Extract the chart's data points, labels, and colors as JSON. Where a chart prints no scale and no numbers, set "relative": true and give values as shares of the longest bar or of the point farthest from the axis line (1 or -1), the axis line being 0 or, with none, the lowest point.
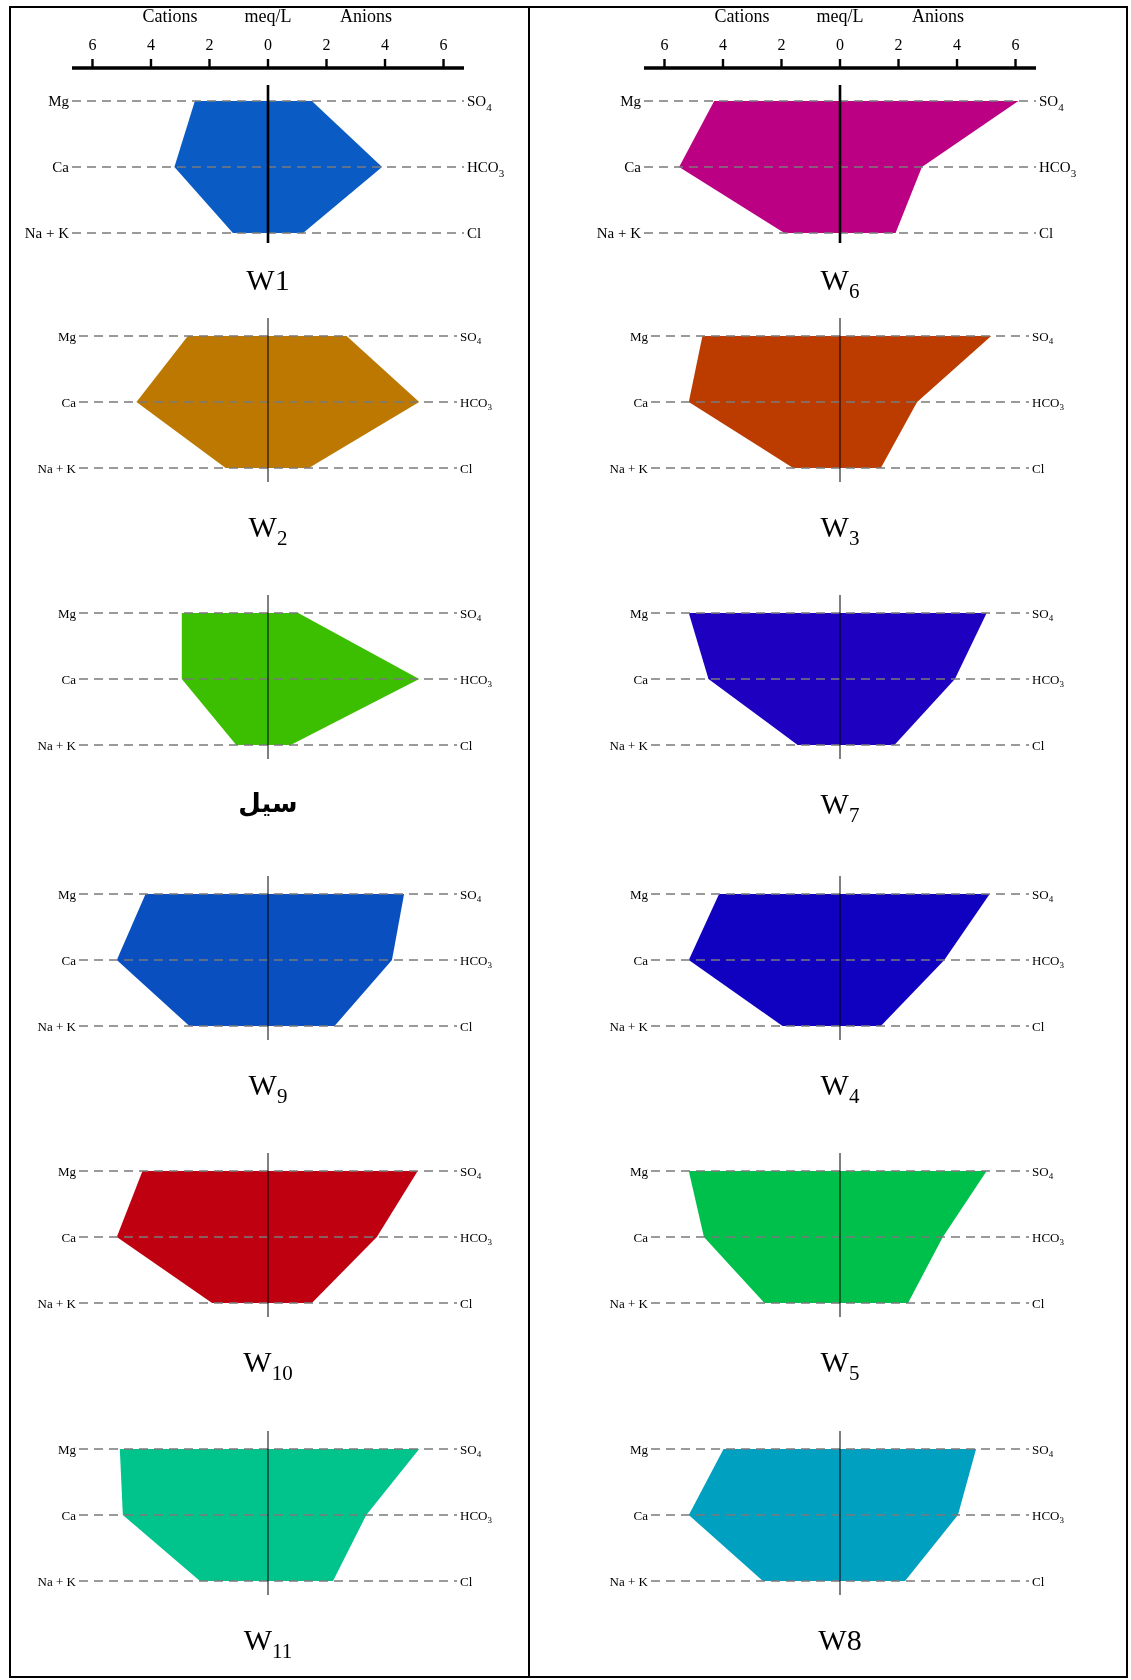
{
  "chart_data": [
    {
      "type": "area",
      "orientation": "horizontal",
      "title": "W1",
      "xlabel": "meq/L",
      "categories": [
        "Mg",
        "Ca",
        "Na + K"
      ],
      "annotations": [
        "SO$_{4}$",
        "HCO$_{3}$",
        "Cl",
        "Cations",
        "Anions"
      ],
      "grid": "y",
      "xlim": [
        -6.7,
        6.7
      ],
      "xticks": [
        {
          "value": -6,
          "label": "6"
        },
        {
          "value": -4,
          "label": "4"
        },
        {
          "value": -2,
          "label": "2"
        },
        0,
        2,
        4,
        6
      ],
      "series": [
        {
          "color": "#0a5cc4",
          "values": [
            -2.5,
            -3.2,
            -1.2
          ]
        },
        {
          "color": "#0a5cc4",
          "values": [
            1.5,
            3.9,
            1.2
          ]
        }
      ]
    },
    {
      "type": "area",
      "orientation": "horizontal",
      "title": "W$_{6}$",
      "xlabel": "meq/L",
      "categories": [
        "Mg",
        "Ca",
        "Na + K"
      ],
      "annotations": [
        "SO$_{4}$",
        "HCO$_{3}$",
        "Cl",
        "Cations",
        "Anions"
      ],
      "grid": "y",
      "xlim": [
        -6.7,
        6.7
      ],
      "xticks": [
        {
          "value": -6,
          "label": "6"
        },
        {
          "value": -4,
          "label": "4"
        },
        {
          "value": -2,
          "label": "2"
        },
        0,
        2,
        4,
        6
      ],
      "series": [
        {
          "color": "#bc0084",
          "values": [
            -4.3,
            -5.5,
            -1.9
          ]
        },
        {
          "color": "#bc0084",
          "values": [
            6.1,
            2.8,
            1.9
          ]
        }
      ]
    },
    {
      "type": "area",
      "orientation": "horizontal",
      "relative": true,
      "title": "W$_{2}$",
      "categories": [
        "Mg",
        "Ca",
        "Na + K"
      ],
      "annotations": [
        "SO$_{4}$",
        "HCO$_{3}$",
        "Cl"
      ],
      "grid": "y",
      "series": [
        {
          "color": "#bc7800",
          "values": [
            -0.53,
            -0.87,
            -0.28
          ]
        },
        {
          "color": "#bc7800",
          "values": [
            0.52,
            1,
            0.27
          ]
        }
      ]
    },
    {
      "type": "area",
      "orientation": "horizontal",
      "relative": true,
      "title": "W$_{3}$",
      "categories": [
        "Mg",
        "Ca",
        "Na + K"
      ],
      "annotations": [
        "SO$_{4}$",
        "HCO$_{3}$",
        "Cl"
      ],
      "grid": "y",
      "series": [
        {
          "color": "#bc3c00",
          "values": [
            -0.91,
            -1,
            -0.31
          ]
        },
        {
          "color": "#bc3c00",
          "values": [
            1,
            0.51,
            0.27
          ]
        }
      ]
    },
    {
      "type": "area",
      "orientation": "horizontal",
      "relative": true,
      "title": "سیل",
      "categories": [
        "Mg",
        "Ca",
        "Na + K"
      ],
      "annotations": [
        "SO$_{4}$",
        "HCO$_{3}$",
        "Cl"
      ],
      "grid": "y",
      "series": [
        {
          "color": "#3cbf00",
          "values": [
            -0.57,
            -0.57,
            -0.21
          ]
        },
        {
          "color": "#3cbf00",
          "values": [
            0.2,
            1,
            0.15
          ]
        }
      ]
    },
    {
      "type": "area",
      "orientation": "horizontal",
      "relative": true,
      "title": "W$_{7}$",
      "categories": [
        "Mg",
        "Ca",
        "Na + K"
      ],
      "annotations": [
        "SO$_{4}$",
        "HCO$_{3}$",
        "Cl"
      ],
      "grid": "y",
      "series": [
        {
          "color": "#1e00c0",
          "values": [
            -1,
            -0.87,
            -0.28
          ]
        },
        {
          "color": "#1e00c0",
          "values": [
            0.97,
            0.76,
            0.36
          ]
        }
      ]
    },
    {
      "type": "area",
      "orientation": "horizontal",
      "relative": true,
      "title": "W$_{9}$",
      "categories": [
        "Mg",
        "Ca",
        "Na + K"
      ],
      "annotations": [
        "SO$_{4}$",
        "HCO$_{3}$",
        "Cl"
      ],
      "grid": "y",
      "series": [
        {
          "color": "#0a4fc0",
          "values": [
            -0.81,
            -1,
            -0.52
          ]
        },
        {
          "color": "#0a4fc0",
          "values": [
            0.9,
            0.82,
            0.44
          ]
        }
      ]
    },
    {
      "type": "area",
      "orientation": "horizontal",
      "relative": true,
      "title": "W$_{4}$",
      "categories": [
        "Mg",
        "Ca",
        "Na + K"
      ],
      "annotations": [
        "SO$_{4}$",
        "HCO$_{3}$",
        "Cl"
      ],
      "grid": "y",
      "series": [
        {
          "color": "#1000c0",
          "values": [
            -0.8,
            -1,
            -0.38
          ]
        },
        {
          "color": "#1000c0",
          "values": [
            0.99,
            0.69,
            0.27
          ]
        }
      ]
    },
    {
      "type": "area",
      "orientation": "horizontal",
      "relative": true,
      "title": "W$_{10}$",
      "categories": [
        "Mg",
        "Ca",
        "Na + K"
      ],
      "annotations": [
        "SO$_{4}$",
        "HCO$_{3}$",
        "Cl"
      ],
      "grid": "y",
      "series": [
        {
          "color": "#bf0010",
          "values": [
            -0.83,
            -1,
            -0.37
          ]
        },
        {
          "color": "#bf0010",
          "values": [
            0.99,
            0.72,
            0.29
          ]
        }
      ]
    },
    {
      "type": "area",
      "orientation": "horizontal",
      "relative": true,
      "title": "W$_{5}$",
      "categories": [
        "Mg",
        "Ca",
        "Na + K"
      ],
      "annotations": [
        "SO$_{4}$",
        "HCO$_{3}$",
        "Cl"
      ],
      "grid": "y",
      "series": [
        {
          "color": "#00c04c",
          "values": [
            -1,
            -0.9,
            -0.5
          ]
        },
        {
          "color": "#00c04c",
          "values": [
            0.97,
            0.68,
            0.45
          ]
        }
      ]
    },
    {
      "type": "area",
      "orientation": "horizontal",
      "relative": true,
      "title": "W$_{11}$",
      "categories": [
        "Mg",
        "Ca",
        "Na + K"
      ],
      "annotations": [
        "SO$_{4}$",
        "HCO$_{3}$",
        "Cl"
      ],
      "grid": "y",
      "series": [
        {
          "color": "#00c48c",
          "values": [
            -0.98,
            -0.96,
            -0.45
          ]
        },
        {
          "color": "#00c48c",
          "values": [
            1,
            0.65,
            0.43
          ]
        }
      ]
    },
    {
      "type": "area",
      "orientation": "horizontal",
      "relative": true,
      "title": "W8",
      "categories": [
        "Mg",
        "Ca",
        "Na + K"
      ],
      "annotations": [
        "SO$_{4}$",
        "HCO$_{3}$",
        "Cl"
      ],
      "grid": "y",
      "series": [
        {
          "color": "#00a0c0",
          "values": [
            -0.77,
            -1,
            -0.51
          ]
        },
        {
          "color": "#00a0c0",
          "values": [
            0.9,
            0.78,
            0.43
          ]
        }
      ]
    }
  ]
}
